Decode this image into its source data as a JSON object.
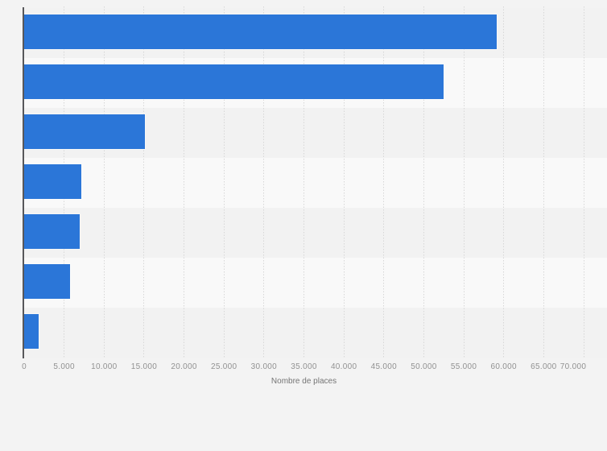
{
  "page": {
    "background_color": "#f3f3f3"
  },
  "chart_data": {
    "type": "bar",
    "orientation": "horizontal",
    "title": "",
    "xlabel": "Nombre de places",
    "ylabel": "",
    "categories": [
      "",
      "",
      "",
      "",
      "",
      "",
      ""
    ],
    "values": [
      59100,
      52450,
      15150,
      7150,
      6950,
      5700,
      1800
    ],
    "xlim": [
      0,
      70000
    ],
    "xticks": [
      {
        "value": 0,
        "label": "0"
      },
      {
        "value": 5000,
        "label": "5.000"
      },
      {
        "value": 10000,
        "label": "10.000"
      },
      {
        "value": 15000,
        "label": "15.000"
      },
      {
        "value": 20000,
        "label": "20.000"
      },
      {
        "value": 25000,
        "label": "25.000"
      },
      {
        "value": 30000,
        "label": "30.000"
      },
      {
        "value": 35000,
        "label": "35.000"
      },
      {
        "value": 40000,
        "label": "40.000"
      },
      {
        "value": 45000,
        "label": "45.000"
      },
      {
        "value": 50000,
        "label": "50.000"
      },
      {
        "value": 55000,
        "label": "55.000"
      },
      {
        "value": 60000,
        "label": "60.000"
      },
      {
        "value": 65000,
        "label": "65.000"
      },
      {
        "value": 70000,
        "label": "70.000"
      }
    ],
    "grid": true,
    "legend": false,
    "styles": {
      "bar_color": "#2b76d8",
      "row_stripe_dark": "#f2f2f2",
      "row_stripe_light": "#f9f9f9",
      "gridline_color": "#d7d7d7",
      "axis_line_color": "#57575a",
      "tick_label_color": "#919191",
      "axis_title_color": "#747474"
    }
  }
}
